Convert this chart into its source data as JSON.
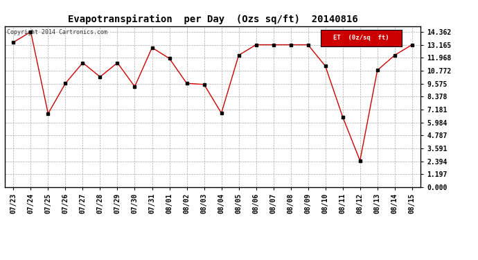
{
  "title": "Evapotranspiration  per Day  (Ozs sq/ft)  20140816",
  "x_labels": [
    "07/23",
    "07/24",
    "07/25",
    "07/26",
    "07/27",
    "07/28",
    "07/29",
    "07/30",
    "07/31",
    "08/01",
    "08/02",
    "08/03",
    "08/04",
    "08/05",
    "08/06",
    "08/07",
    "08/08",
    "08/09",
    "08/10",
    "08/11",
    "08/12",
    "08/13",
    "08/14",
    "08/15"
  ],
  "y_values": [
    13.4,
    14.362,
    6.8,
    9.6,
    11.5,
    10.2,
    11.5,
    9.3,
    12.9,
    11.9,
    9.6,
    9.5,
    6.85,
    12.2,
    13.165,
    13.165,
    13.165,
    13.165,
    11.2,
    6.5,
    2.45,
    10.8,
    12.2,
    13.165
  ],
  "y_ticks": [
    0.0,
    1.197,
    2.394,
    3.591,
    4.787,
    5.984,
    7.181,
    8.378,
    9.575,
    10.772,
    11.968,
    13.165,
    14.362
  ],
  "y_tick_labels": [
    "0.000",
    "1.197",
    "2.394",
    "3.591",
    "4.787",
    "5.984",
    "7.181",
    "8.378",
    "9.575",
    "10.772",
    "11.968",
    "13.165",
    "14.362"
  ],
  "ylim": [
    0,
    14.9
  ],
  "line_color": "#cc0000",
  "marker_color": "#000000",
  "background_color": "#ffffff",
  "grid_color": "#aaaaaa",
  "copyright_text": "Copyright 2014 Cartronics.com",
  "legend_label": "ET  (0z/sq  ft)",
  "legend_bg": "#cc0000",
  "legend_text_color": "#ffffff",
  "title_fontsize": 10,
  "tick_fontsize": 7,
  "copyright_fontsize": 6
}
